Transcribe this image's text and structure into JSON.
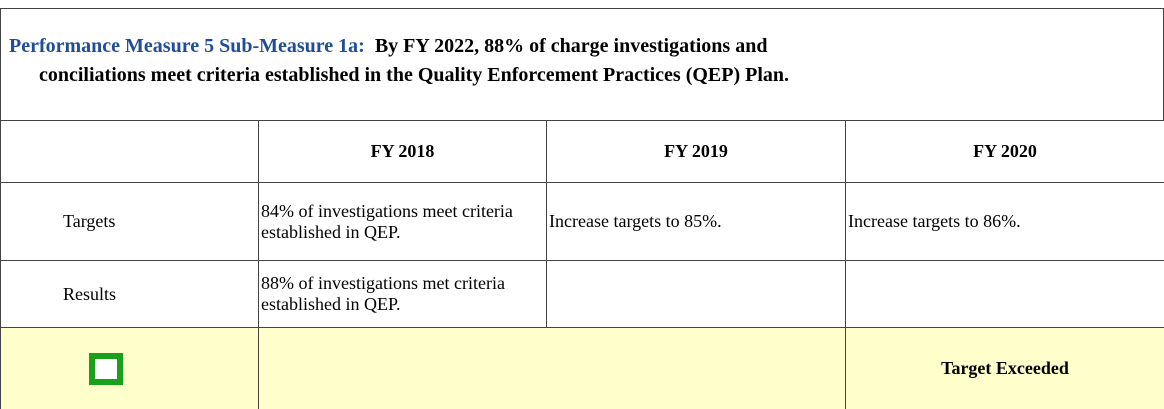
{
  "title": {
    "label": "Performance Measure 5 Sub-Measure 1a:",
    "text_lines": [
      "By FY 2022, 88% of charge investigations and",
      "conciliations meet criteria established in the Quality Enforcement Practices (QEP) Plan."
    ]
  },
  "table": {
    "headers": [
      "FY 2018",
      "FY 2019",
      "FY 2020"
    ],
    "rows": [
      [
        "Targets",
        "84% of investigations meet criteria established in QEP.",
        "Increase targets to 85%.",
        "Increase targets to 86%."
      ],
      [
        "Results",
        "88% of investigations met criteria established in QEP.",
        "",
        ""
      ]
    ],
    "status": "Target Exceeded"
  }
}
